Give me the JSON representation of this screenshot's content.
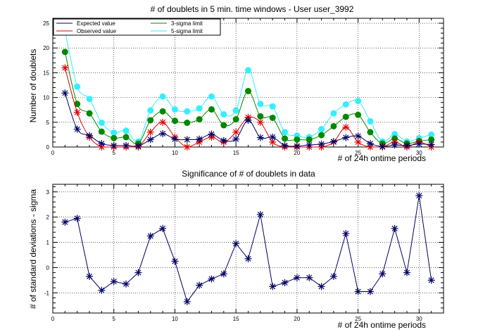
{
  "chart_data": [
    {
      "type": "line",
      "title": "# of doublets in 5 min. time windows - User user_3992",
      "xlabel": "# of 24h ontime periods",
      "ylabel": "Number of doublets",
      "xlim": [
        0,
        32
      ],
      "ylim": [
        0,
        26
      ],
      "x_ticks": [
        0,
        5,
        10,
        15,
        20,
        25,
        30
      ],
      "y_ticks": [
        0,
        5,
        10,
        15,
        20,
        25
      ],
      "grid": true,
      "legend": "top-left",
      "x": [
        1,
        2,
        3,
        4,
        5,
        6,
        7,
        8,
        9,
        10,
        11,
        12,
        13,
        14,
        15,
        16,
        17,
        18,
        19,
        20,
        21,
        22,
        23,
        24,
        25,
        26,
        27,
        28,
        29,
        30,
        31
      ],
      "series": [
        {
          "name": "Expected value",
          "color": "#000066",
          "marker": "star",
          "values": [
            10.9,
            3.6,
            2.3,
            0.7,
            0.3,
            0.3,
            0.2,
            1.5,
            2.7,
            1.6,
            1.5,
            1.6,
            2.6,
            1.3,
            1.6,
            5.4,
            1.9,
            2.0,
            0.3,
            0.2,
            0.4,
            0.6,
            1.1,
            1.9,
            2.2,
            0.7,
            0.1,
            0.4,
            0.3,
            0.6,
            0.5
          ]
        },
        {
          "name": "Observed value",
          "color": "#dd0000",
          "marker": "star",
          "values": [
            16,
            7,
            2,
            0,
            0,
            0,
            0,
            3,
            5,
            2,
            0,
            1,
            2,
            1,
            3,
            6,
            5,
            1,
            0,
            0,
            0,
            0,
            1,
            4,
            1,
            0,
            0,
            1,
            0,
            1,
            0
          ]
        },
        {
          "name": "3-sigma limit",
          "color": "#008800",
          "marker": "circle",
          "values": [
            19.2,
            8.7,
            6.8,
            3.1,
            1.8,
            2.0,
            0.7,
            5.4,
            7.2,
            5.3,
            4.9,
            5.6,
            7.6,
            4.4,
            5.6,
            11.3,
            6.2,
            5.9,
            1.7,
            1.5,
            1.5,
            2.4,
            4.2,
            6.1,
            6.5,
            3.0,
            0.7,
            1.7,
            0.7,
            1.2,
            1.5
          ]
        },
        {
          "name": "5-sigma limit",
          "color": "#33eeff",
          "marker": "circle",
          "values": [
            23.5,
            12.2,
            9.7,
            4.9,
            2.9,
            3.3,
            1.1,
            7.4,
            10.2,
            7.6,
            7.2,
            7.8,
            10.2,
            6.6,
            7.4,
            15.5,
            8.7,
            8.2,
            3.0,
            2.3,
            2.0,
            3.6,
            6.8,
            8.6,
            9.3,
            5.2,
            1.1,
            2.6,
            1.1,
            1.8,
            2.5
          ]
        }
      ]
    },
    {
      "type": "line",
      "title": "Significance of # of doublets in data",
      "xlabel": "# of 24h ontime periods",
      "ylabel": "# of standard deviations - sigma",
      "xlim": [
        0,
        32
      ],
      "ylim": [
        -1.8,
        3.3
      ],
      "x_ticks": [
        0,
        5,
        10,
        15,
        20,
        25,
        30
      ],
      "y_ticks": [
        -1,
        0,
        1,
        2,
        3
      ],
      "grid": true,
      "x": [
        1,
        2,
        3,
        4,
        5,
        6,
        7,
        8,
        9,
        10,
        11,
        12,
        13,
        14,
        15,
        16,
        17,
        18,
        19,
        20,
        21,
        22,
        23,
        24,
        25,
        26,
        27,
        28,
        29,
        30,
        31
      ],
      "series": [
        {
          "color": "#000066",
          "marker": "star",
          "values": [
            1.8,
            1.95,
            -0.35,
            -0.9,
            -0.55,
            -0.65,
            -0.2,
            1.25,
            1.55,
            0.25,
            -1.35,
            -0.7,
            -0.45,
            -0.25,
            0.95,
            0.35,
            2.1,
            -0.75,
            -0.6,
            -0.4,
            -0.4,
            -0.75,
            -0.35,
            1.35,
            -0.95,
            -0.95,
            -0.25,
            1.55,
            -0.2,
            2.85,
            -0.5
          ]
        }
      ]
    }
  ]
}
